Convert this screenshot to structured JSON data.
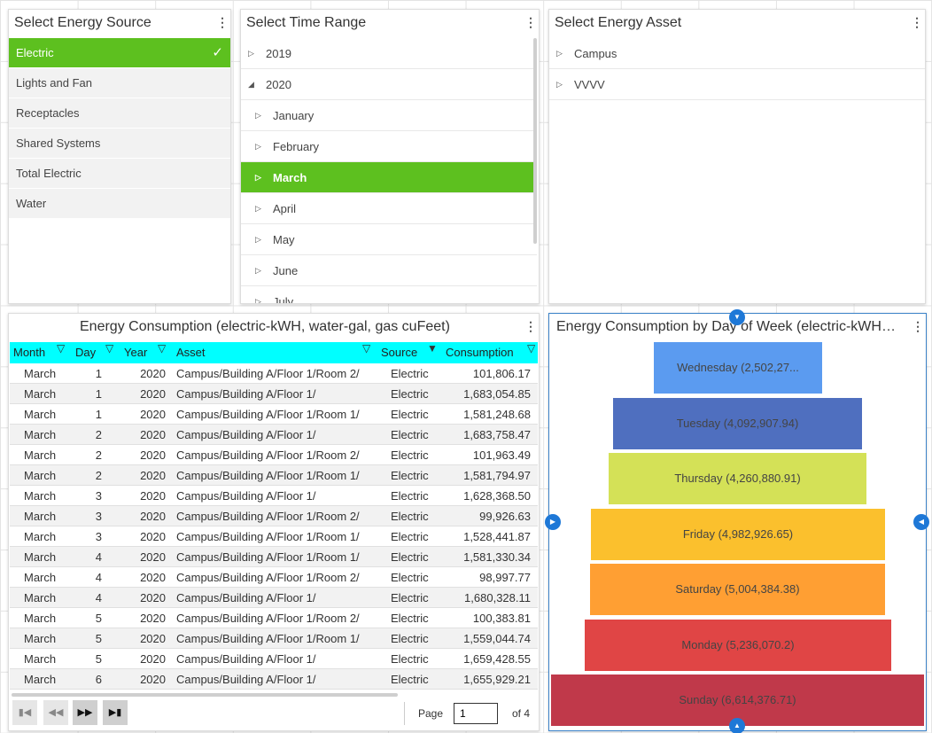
{
  "source_panel": {
    "title": "Select Energy Source",
    "items": [
      {
        "label": "Electric",
        "selected": true
      },
      {
        "label": "Lights and Fan"
      },
      {
        "label": "Receptacles"
      },
      {
        "label": "Shared Systems"
      },
      {
        "label": "Total Electric"
      },
      {
        "label": "Water"
      }
    ]
  },
  "time_panel": {
    "title": "Select Time Range",
    "rows": [
      {
        "label": "2019",
        "level": 0,
        "expanded": false
      },
      {
        "label": "2020",
        "level": 0,
        "expanded": true
      },
      {
        "label": "January",
        "level": 1
      },
      {
        "label": "February",
        "level": 1
      },
      {
        "label": "March",
        "level": 1,
        "selected": true
      },
      {
        "label": "April",
        "level": 1
      },
      {
        "label": "May",
        "level": 1
      },
      {
        "label": "June",
        "level": 1
      },
      {
        "label": "July",
        "level": 1
      }
    ]
  },
  "asset_panel": {
    "title": "Select Energy Asset",
    "rows": [
      {
        "label": "Campus"
      },
      {
        "label": "VVVV"
      }
    ]
  },
  "grid_panel": {
    "title": "Energy Consumption (electric-kWH, water-gal, gas cuFeet)",
    "columns": [
      "Month",
      "Day",
      "Year",
      "Asset",
      "Source",
      "Consumption"
    ],
    "rows": [
      [
        "March",
        "1",
        "2020",
        "Campus/Building A/Floor 1/Room 2/",
        "Electric",
        "101,806.17"
      ],
      [
        "March",
        "1",
        "2020",
        "Campus/Building A/Floor 1/",
        "Electric",
        "1,683,054.85"
      ],
      [
        "March",
        "1",
        "2020",
        "Campus/Building A/Floor 1/Room 1/",
        "Electric",
        "1,581,248.68"
      ],
      [
        "March",
        "2",
        "2020",
        "Campus/Building A/Floor 1/",
        "Electric",
        "1,683,758.47"
      ],
      [
        "March",
        "2",
        "2020",
        "Campus/Building A/Floor 1/Room 2/",
        "Electric",
        "101,963.49"
      ],
      [
        "March",
        "2",
        "2020",
        "Campus/Building A/Floor 1/Room 1/",
        "Electric",
        "1,581,794.97"
      ],
      [
        "March",
        "3",
        "2020",
        "Campus/Building A/Floor 1/",
        "Electric",
        "1,628,368.50"
      ],
      [
        "March",
        "3",
        "2020",
        "Campus/Building A/Floor 1/Room 2/",
        "Electric",
        "99,926.63"
      ],
      [
        "March",
        "3",
        "2020",
        "Campus/Building A/Floor 1/Room 1/",
        "Electric",
        "1,528,441.87"
      ],
      [
        "March",
        "4",
        "2020",
        "Campus/Building A/Floor 1/Room 1/",
        "Electric",
        "1,581,330.34"
      ],
      [
        "March",
        "4",
        "2020",
        "Campus/Building A/Floor 1/Room 2/",
        "Electric",
        "98,997.77"
      ],
      [
        "March",
        "4",
        "2020",
        "Campus/Building A/Floor 1/",
        "Electric",
        "1,680,328.11"
      ],
      [
        "March",
        "5",
        "2020",
        "Campus/Building A/Floor 1/Room 2/",
        "Electric",
        "100,383.81"
      ],
      [
        "March",
        "5",
        "2020",
        "Campus/Building A/Floor 1/Room 1/",
        "Electric",
        "1,559,044.74"
      ],
      [
        "March",
        "5",
        "2020",
        "Campus/Building A/Floor 1/",
        "Electric",
        "1,659,428.55"
      ],
      [
        "March",
        "6",
        "2020",
        "Campus/Building A/Floor 1/",
        "Electric",
        "1,655,929.21"
      ]
    ],
    "pager": {
      "page_label": "Page",
      "page_value": "1",
      "of_label": "of 4"
    }
  },
  "funnel_panel": {
    "title": "Energy Consumption by Day of Week (electric-kWH, ..."
  },
  "chart_data": {
    "type": "funnel",
    "title": "Energy Consumption by Day of Week (electric-kWH, ...",
    "categories": [
      "Wednesday",
      "Tuesday",
      "Thursday",
      "Friday",
      "Saturday",
      "Monday",
      "Sunday"
    ],
    "values": [
      2502270,
      4092907.94,
      4260880.91,
      4982926.65,
      5004384.38,
      5236070.2,
      6614376.71
    ],
    "labels": [
      "Wednesday (2,502,27...",
      "Tuesday (4,092,907.94)",
      "Thursday (4,260,880.91)",
      "Friday (4,982,926.65)",
      "Saturday (5,004,384.38)",
      "Monday (5,236,070.2)",
      "Sunday (6,614,376.71)"
    ],
    "colors": [
      "#5b9bf0",
      "#4f6fbf",
      "#d4e157",
      "#fbc02d",
      "#ff9f33",
      "#e04545",
      "#c0394a"
    ]
  }
}
